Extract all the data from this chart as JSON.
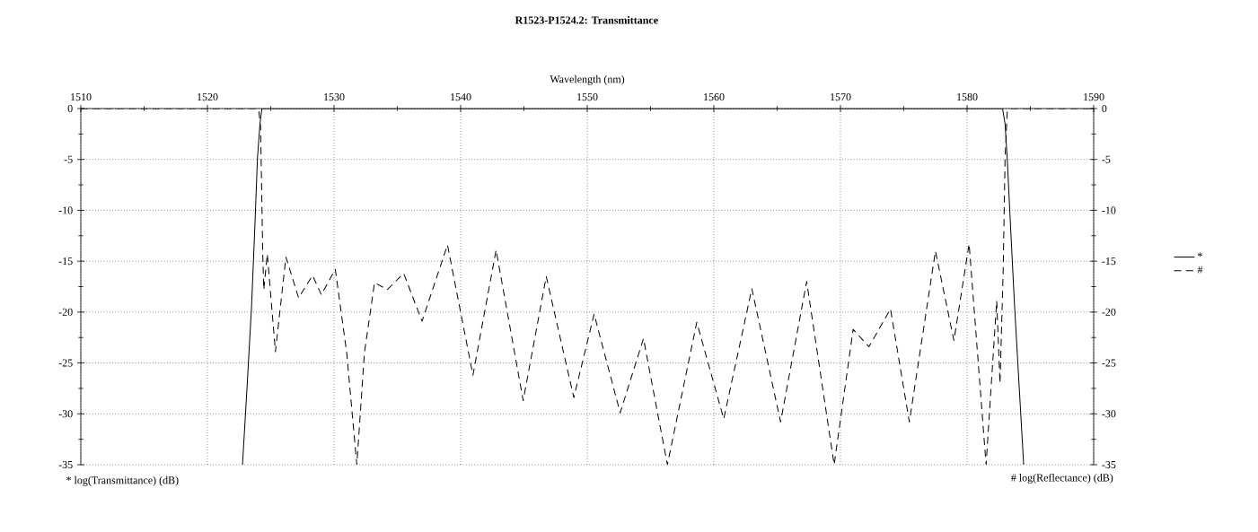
{
  "chart_data": {
    "type": "line",
    "title": "R1523-P1524.2: Transmittance",
    "xlabel": "Wavelength (nm)",
    "ylabel": "* log(Transmittance) (dB)",
    "annotations": [
      "# log(Reflectance) (dB)"
    ],
    "xlim": [
      1510,
      1590
    ],
    "xticks": [
      1510,
      1520,
      1530,
      1540,
      1550,
      1560,
      1570,
      1580,
      1590
    ],
    "ylim": [
      -35,
      0
    ],
    "yticks": [
      -35,
      -30,
      -25,
      -20,
      -15,
      -10,
      -5,
      0
    ],
    "y2lim": [
      -35,
      0
    ],
    "y2ticks": [
      -35,
      -30,
      -25,
      -20,
      -15,
      -10,
      -5,
      0
    ],
    "grid": true,
    "legend": "right",
    "series": [
      {
        "name": "*",
        "color": "#000000",
        "line_style": "solid",
        "x": [
          1522.77,
          1523.1,
          1523.48,
          1523.75,
          1523.95,
          1524.15,
          1524.3,
          1526,
          1530,
          1535,
          1540,
          1545,
          1550,
          1555,
          1560,
          1565,
          1570,
          1575,
          1580,
          1582.8,
          1583.0,
          1583.17,
          1583.45,
          1583.76,
          1584.1,
          1584.47
        ],
        "values": [
          -35,
          -28,
          -19.6,
          -11.5,
          -4.9,
          -1.5,
          0,
          0,
          0,
          0,
          0,
          0,
          0,
          0,
          0,
          0,
          0,
          0,
          0,
          0,
          -1.5,
          -4.9,
          -12,
          -19.6,
          -27,
          -35
        ]
      },
      {
        "name": "#",
        "color": "#000000",
        "line_style": "dashed",
        "axis": "y2",
        "x": [
          1510,
          1523.9,
          1524.06,
          1524.2,
          1524.37,
          1524.45,
          1524.73,
          1525.37,
          1526.2,
          1527.2,
          1528.3,
          1529.0,
          1530.1,
          1531.0,
          1531.8,
          1532.4,
          1533.2,
          1534.2,
          1535.5,
          1536.95,
          1538.96,
          1540.97,
          1542.8,
          1544.94,
          1546.76,
          1548.94,
          1550.54,
          1552.6,
          1554.44,
          1556.33,
          1558.65,
          1560.78,
          1563.0,
          1565.27,
          1567.33,
          1569.5,
          1571.0,
          1572.25,
          1573.95,
          1575.44,
          1577.5,
          1578.96,
          1580.16,
          1581.5,
          1582.34,
          1582.6,
          1582.85,
          1583.0,
          1583.17,
          1583.4,
          1590
        ],
        "values": [
          0,
          0,
          -0.2,
          -1.9,
          -14.3,
          -17.8,
          -14.3,
          -23.9,
          -14.6,
          -18.6,
          -16.4,
          -18.3,
          -15.8,
          -24,
          -35,
          -24,
          -17.1,
          -17.8,
          -16.2,
          -20.9,
          -13.4,
          -26.2,
          -13.9,
          -28.7,
          -16.5,
          -28.4,
          -20.2,
          -29.9,
          -22.6,
          -35,
          -21.0,
          -30.5,
          -17.7,
          -30.8,
          -17.0,
          -35,
          -21.7,
          -23.4,
          -19.7,
          -30.8,
          -14.0,
          -22.8,
          -13.3,
          -35,
          -18.9,
          -27.0,
          -16,
          -4.9,
          -0.3,
          0,
          0
        ]
      }
    ]
  }
}
